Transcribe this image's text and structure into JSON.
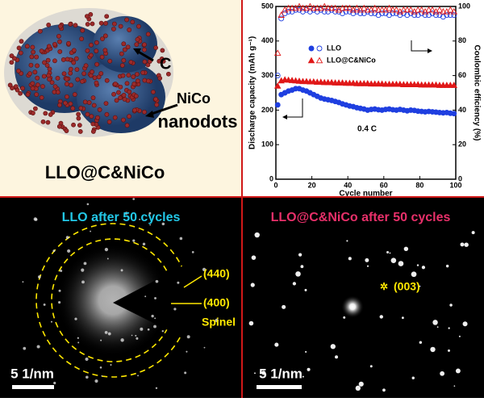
{
  "schematic": {
    "label_c": "C",
    "label_nico": "NiCo",
    "label_nanodots": "nanodots",
    "caption": "LLO@C&NiCo"
  },
  "chart_data": {
    "type": "scatter",
    "ylabel": "Discharge capacity (mAh g⁻¹)",
    "y2label": "Coulombic efficiency (%)",
    "xlabel": "Cycle number",
    "annotation": "0.4 C",
    "xlim": [
      0,
      100
    ],
    "xticks": [
      0,
      20,
      40,
      60,
      80,
      100
    ],
    "ylim": [
      0,
      500
    ],
    "yticks": [
      0,
      100,
      200,
      300,
      400,
      500
    ],
    "y2lim": [
      0,
      100
    ],
    "y2ticks": [
      0,
      20,
      40,
      60,
      80,
      100
    ],
    "x": [
      1,
      3,
      5,
      7,
      9,
      11,
      13,
      15,
      17,
      19,
      21,
      23,
      25,
      27,
      29,
      31,
      33,
      35,
      37,
      39,
      41,
      43,
      45,
      47,
      49,
      51,
      53,
      55,
      57,
      59,
      61,
      63,
      65,
      67,
      69,
      71,
      73,
      75,
      77,
      79,
      81,
      83,
      85,
      87,
      89,
      91,
      93,
      95,
      97,
      99
    ],
    "series": [
      {
        "name": "LLO",
        "color": "#1f3fe0",
        "marker": "circle",
        "values": [
          215,
          245,
          250,
          255,
          258,
          262,
          262,
          258,
          255,
          250,
          245,
          240,
          235,
          232,
          230,
          228,
          225,
          222,
          218,
          215,
          212,
          210,
          207,
          205,
          203,
          200,
          202,
          203,
          201,
          200,
          202,
          203,
          201,
          200,
          202,
          200,
          198,
          200,
          199,
          197,
          196,
          195,
          196,
          195,
          194,
          193,
          192,
          193,
          191,
          190
        ],
        "efficiency": [
          60,
          93,
          96,
          97,
          97,
          98,
          98,
          97,
          98,
          97,
          98,
          97,
          98,
          97,
          97,
          98,
          97,
          97,
          96,
          97,
          97,
          96,
          97,
          96,
          96,
          97,
          96,
          96,
          95,
          96,
          96,
          95,
          96,
          96,
          95,
          96,
          95,
          96,
          95,
          95,
          96,
          95,
          95,
          96,
          95,
          95,
          94,
          95,
          95,
          95
        ]
      },
      {
        "name": "LLO@C&NiCo",
        "color": "#e01818",
        "marker": "triangle",
        "values": [
          270,
          285,
          288,
          287,
          286,
          285,
          284,
          283,
          283,
          282,
          282,
          281,
          281,
          280,
          280,
          280,
          279,
          279,
          279,
          278,
          278,
          278,
          277,
          277,
          277,
          277,
          276,
          276,
          276,
          276,
          275,
          275,
          275,
          275,
          275,
          274,
          274,
          274,
          274,
          274,
          273,
          273,
          273,
          273,
          273,
          272,
          272,
          272,
          272,
          272
        ],
        "efficiency": [
          73,
          95,
          98,
          99,
          99,
          99,
          100,
          99,
          99,
          100,
          99,
          99,
          99,
          100,
          99,
          99,
          99,
          98,
          99,
          99,
          99,
          98,
          99,
          98,
          99,
          98,
          98,
          99,
          98,
          98,
          98,
          99,
          98,
          98,
          97,
          98,
          98,
          98,
          97,
          98,
          98,
          97,
          98,
          98,
          97,
          98,
          97,
          97,
          98,
          97
        ]
      }
    ]
  },
  "diffraction_left": {
    "title": "LLO after 50 cycles",
    "ring_outer": "(440)",
    "ring_inner": "(400)",
    "phase": "Spinel",
    "scale": "5 1/nm"
  },
  "diffraction_right": {
    "title": "LLO@C&NiCo after 50 cycles",
    "spot": "(003)",
    "scale": "5 1/nm"
  }
}
